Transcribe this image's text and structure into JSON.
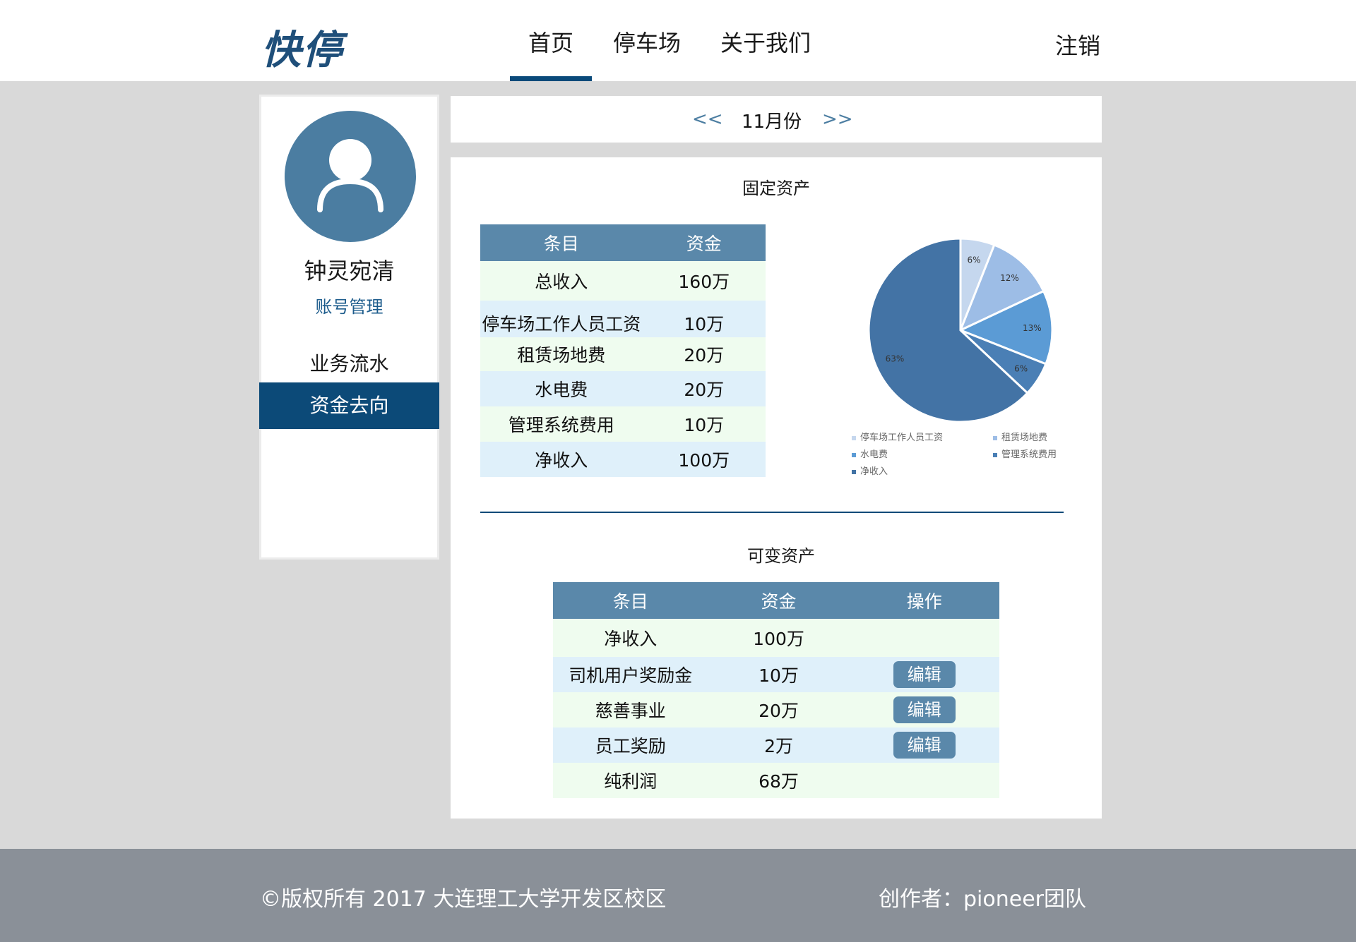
{
  "header": {
    "logo": "快停",
    "nav": [
      "首页",
      "停车场",
      "关于我们"
    ],
    "logout": "注销"
  },
  "sidebar": {
    "username": "钟灵宛清",
    "account_link": "账号管理",
    "menu": [
      "业务流水",
      "资金去向"
    ]
  },
  "month": {
    "prev": "<<",
    "label": "11月份",
    "next": ">>"
  },
  "fixed": {
    "title": "固定资产",
    "headers": [
      "条目",
      "资金"
    ],
    "rows": [
      [
        "总收入",
        "160万"
      ],
      [
        "停车场工作人员工资",
        "10万"
      ],
      [
        "租赁场地费",
        "20万"
      ],
      [
        "水电费",
        "20万"
      ],
      [
        "管理系统费用",
        "10万"
      ],
      [
        "净收入",
        "100万"
      ]
    ]
  },
  "chart_data": {
    "type": "pie",
    "categories": [
      "停车场工作人员工资",
      "租赁场地费",
      "水电费",
      "管理系统费用",
      "净收入"
    ],
    "values": [
      6,
      12,
      13,
      6,
      63
    ],
    "labels": [
      "6%",
      "12%",
      "13%",
      "6%",
      "63%"
    ],
    "colors": [
      "#c5d7ee",
      "#9dbde6",
      "#5b9bd5",
      "#4a7fb5",
      "#4373a5"
    ],
    "legend_position": "bottom"
  },
  "variable": {
    "title": "可变资产",
    "headers": [
      "条目",
      "资金",
      "操作"
    ],
    "edit_label": "编辑",
    "rows": [
      [
        "净收入",
        "100万"
      ],
      [
        "司机用户奖励金",
        "10万"
      ],
      [
        "慈善事业",
        "20万"
      ],
      [
        "员工奖励",
        "2万"
      ],
      [
        "纯利润",
        "68万"
      ]
    ]
  },
  "footer": {
    "copyright": "©版权所有  2017  大连理工大学开发区校区",
    "author": "创作者：pioneer团队"
  }
}
